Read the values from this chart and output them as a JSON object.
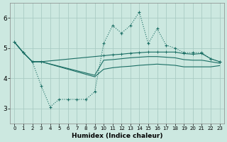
{
  "xlabel": "Humidex (Indice chaleur)",
  "bg_color": "#cce8e0",
  "grid_color": "#aaccC4",
  "line_color": "#1a6e64",
  "xlim": [
    -0.5,
    23.5
  ],
  "ylim": [
    2.5,
    6.5
  ],
  "xticks": [
    0,
    1,
    2,
    3,
    4,
    5,
    6,
    7,
    8,
    9,
    10,
    11,
    12,
    13,
    14,
    15,
    16,
    17,
    18,
    19,
    20,
    21,
    22,
    23
  ],
  "yticks": [
    3,
    4,
    5,
    6
  ],
  "line_dotted": {
    "x": [
      0,
      1,
      2,
      3,
      4,
      5,
      6,
      7,
      8,
      9,
      10,
      11,
      12,
      13,
      14,
      15,
      16,
      17,
      18,
      19,
      20,
      21,
      22,
      23
    ],
    "y": [
      5.2,
      4.85,
      4.55,
      3.75,
      3.05,
      3.3,
      3.3,
      3.3,
      3.3,
      3.55,
      5.15,
      5.75,
      5.5,
      5.75,
      6.2,
      5.15,
      5.65,
      5.1,
      5.0,
      4.85,
      4.85,
      4.85,
      4.65,
      4.55
    ]
  },
  "line_upper": {
    "x": [
      0,
      1,
      2,
      3,
      10,
      11,
      12,
      13,
      14,
      15,
      16,
      17,
      18,
      19,
      20,
      21,
      22,
      23
    ],
    "y": [
      5.2,
      4.85,
      4.55,
      4.55,
      4.75,
      4.78,
      4.8,
      4.83,
      4.85,
      4.87,
      4.87,
      4.87,
      4.87,
      4.82,
      4.8,
      4.82,
      4.65,
      4.55
    ]
  },
  "line_mid": {
    "x": [
      0,
      1,
      2,
      3,
      9,
      10,
      11,
      12,
      13,
      14,
      15,
      16,
      17,
      18,
      19,
      20,
      21,
      22,
      23
    ],
    "y": [
      5.2,
      4.85,
      4.55,
      4.55,
      4.1,
      4.6,
      4.62,
      4.65,
      4.68,
      4.7,
      4.72,
      4.72,
      4.7,
      4.68,
      4.62,
      4.6,
      4.6,
      4.55,
      4.5
    ]
  },
  "line_lower": {
    "x": [
      0,
      1,
      2,
      3,
      9,
      10,
      11,
      12,
      13,
      14,
      15,
      16,
      17,
      18,
      19,
      20,
      21,
      22,
      23
    ],
    "y": [
      5.2,
      4.85,
      4.55,
      4.55,
      4.05,
      4.3,
      4.35,
      4.38,
      4.4,
      4.43,
      4.45,
      4.47,
      4.45,
      4.43,
      4.38,
      4.38,
      4.38,
      4.38,
      4.42
    ]
  }
}
